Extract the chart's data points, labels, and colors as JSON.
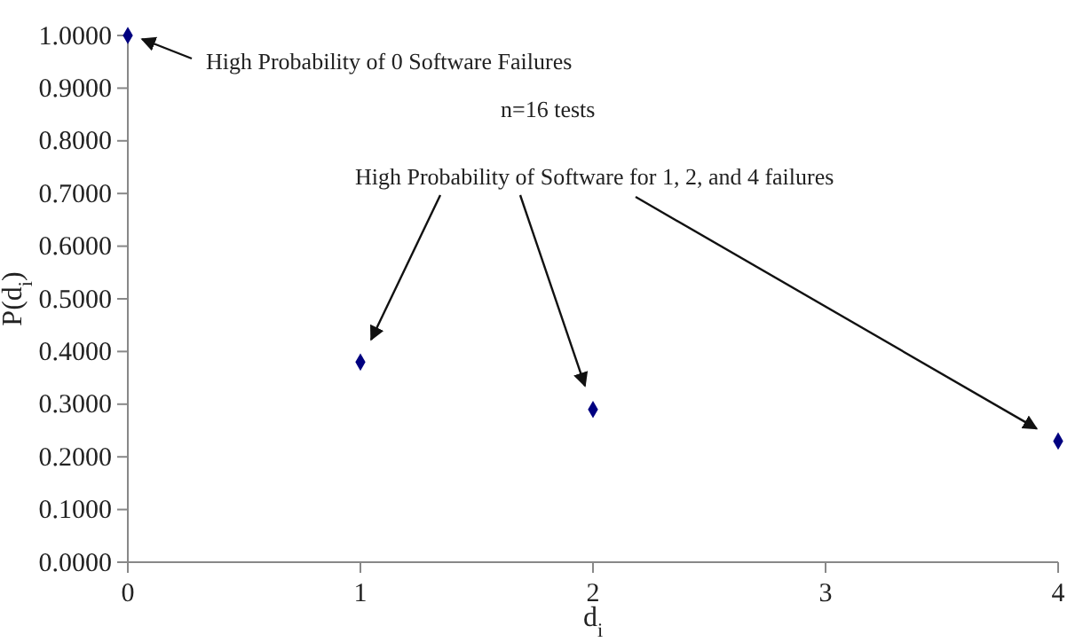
{
  "chart_data": {
    "type": "scatter",
    "xlabel": "d$_{i}$",
    "ylabel": "P(d$_{i}$)",
    "x": [
      0,
      1,
      2,
      4
    ],
    "series": [
      {
        "color": "#000080",
        "values": [
          1.0,
          0.38,
          0.29,
          0.23
        ]
      }
    ],
    "xlim": [
      0,
      4
    ],
    "xticks": [
      0,
      1,
      2,
      3,
      4
    ],
    "ylim": [
      0,
      1
    ],
    "yticks": [
      {
        "value": 0,
        "label": "0.0000"
      },
      {
        "value": 0.1,
        "label": "0.1000"
      },
      {
        "value": 0.2,
        "label": "0.2000"
      },
      {
        "value": 0.3,
        "label": "0.3000"
      },
      {
        "value": 0.4,
        "label": "0.4000"
      },
      {
        "value": 0.5,
        "label": "0.5000"
      },
      {
        "value": 0.6,
        "label": "0.6000"
      },
      {
        "value": 0.7,
        "label": "0.7000"
      },
      {
        "value": 0.8,
        "label": "0.8000"
      },
      {
        "value": 0.9,
        "label": "0.9000"
      },
      {
        "value": 1,
        "label": "1.0000"
      }
    ],
    "marker": "diamond",
    "grid": false,
    "annotations": [
      {
        "text": "High Probability of 0 Software Failures",
        "x": 0,
        "y": 1.0
      },
      "n=16 tests",
      "High Probability of Software for 1, 2, and 4 failures"
    ]
  }
}
